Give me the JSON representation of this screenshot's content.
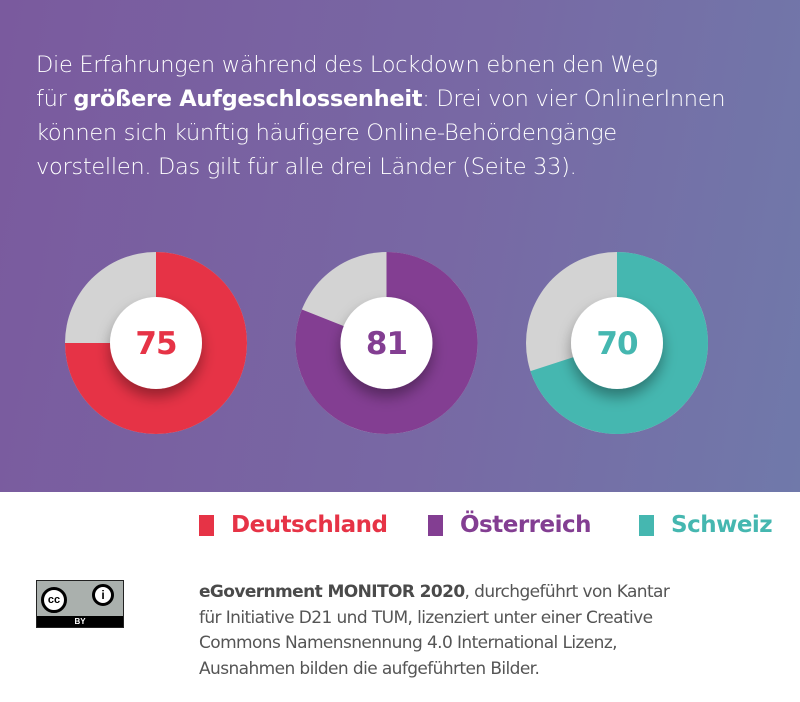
{
  "intro": {
    "line1": "Die Erfahrungen während des Lockdown ebnen den Weg",
    "line2_pre": "für ",
    "line2_bold": "größere Aufgeschlossenheit",
    "line2_post": ": Drei von vier OnlinerInnen",
    "line3": "können sich künftig häufigere Online-Behördengänge",
    "line4": "vorstellen. Das gilt für alle drei Länder (Seite 33)."
  },
  "chart_data": {
    "type": "pie",
    "variant": "donut",
    "categories": [
      "Deutschland",
      "Österreich",
      "Schweiz"
    ],
    "values": [
      75,
      81,
      70
    ],
    "max": 100,
    "colors": [
      "#e63346",
      "#833e92",
      "#45b7b0"
    ],
    "remainder_color": "#d3d3d3",
    "legend_placement": "bottom-right"
  },
  "legend": [
    {
      "label": "Deutschland",
      "color": "#e63346"
    },
    {
      "label": "Österreich",
      "color": "#833e92"
    },
    {
      "label": "Schweiz",
      "color": "#45b7b0"
    }
  ],
  "license": {
    "badge_left": "cc",
    "badge_right": "i",
    "badge_bottom": "BY",
    "icon": "creative-commons-by"
  },
  "credit": {
    "bold": "eGovernment MONITOR 2020",
    "rest1": ", durchgeführt von Kantar",
    "line2": "für Initiative D21 und TUM, lizenziert unter einer Creative",
    "line3": "Commons Namensnennung 4.0 International Lizenz,",
    "line4": "Ausnahmen bilden die aufgeführten Bilder."
  }
}
